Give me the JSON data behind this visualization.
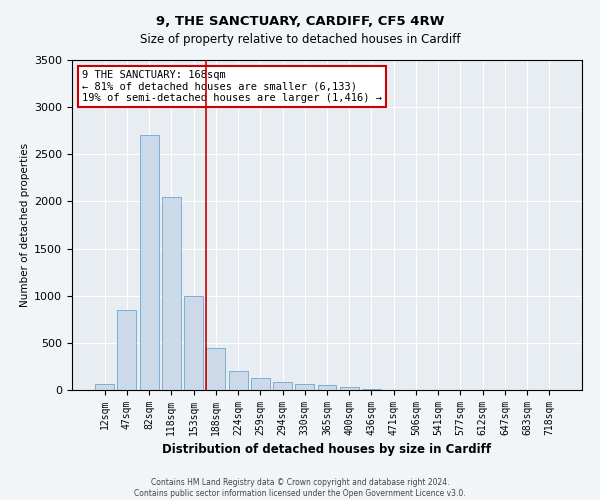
{
  "title1": "9, THE SANCTUARY, CARDIFF, CF5 4RW",
  "title2": "Size of property relative to detached houses in Cardiff",
  "xlabel": "Distribution of detached houses by size in Cardiff",
  "ylabel": "Number of detached properties",
  "bar_labels": [
    "12sqm",
    "47sqm",
    "82sqm",
    "118sqm",
    "153sqm",
    "188sqm",
    "224sqm",
    "259sqm",
    "294sqm",
    "330sqm",
    "365sqm",
    "400sqm",
    "436sqm",
    "471sqm",
    "506sqm",
    "541sqm",
    "577sqm",
    "612sqm",
    "647sqm",
    "683sqm",
    "718sqm"
  ],
  "bar_values": [
    60,
    850,
    2700,
    2050,
    1000,
    450,
    200,
    130,
    80,
    60,
    50,
    30,
    10,
    5,
    5,
    3,
    2,
    2,
    1,
    1,
    1
  ],
  "bar_color": "#ccd9e8",
  "bar_edge_color": "#7bafd4",
  "vline_x": 4.57,
  "vline_color": "#cc0000",
  "annotation_text": "9 THE SANCTUARY: 168sqm\n← 81% of detached houses are smaller (6,133)\n19% of semi-detached houses are larger (1,416) →",
  "annotation_box_color": "#ffffff",
  "annotation_box_edge": "#cc0000",
  "ylim": [
    0,
    3500
  ],
  "yticks": [
    0,
    500,
    1000,
    1500,
    2000,
    2500,
    3000,
    3500
  ],
  "footer1": "Contains HM Land Registry data © Crown copyright and database right 2024.",
  "footer2": "Contains public sector information licensed under the Open Government Licence v3.0.",
  "bg_color": "#f2f5f8",
  "plot_bg_color": "#e8edf2"
}
